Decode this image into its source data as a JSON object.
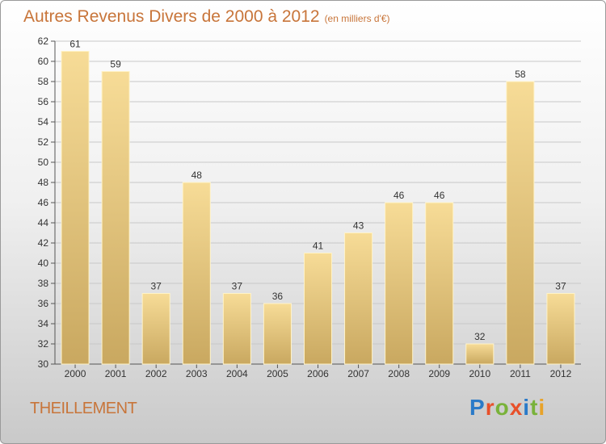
{
  "header": {
    "title": "Autres Revenus Divers de 2000 à 2012",
    "unit": "(en milliers d'€)"
  },
  "footer": {
    "location": "THEILLEMENT",
    "logo": "Proxiti"
  },
  "colors": {
    "bar_light": "#f7dc97",
    "bar_dark": "#c9a860",
    "title": "#c8753a"
  },
  "chart_data": {
    "type": "bar",
    "title": "Autres Revenus Divers de 2000 à 2012",
    "xlabel": "",
    "ylabel": "",
    "categories": [
      "2000",
      "2001",
      "2002",
      "2003",
      "2004",
      "2005",
      "2006",
      "2007",
      "2008",
      "2009",
      "2010",
      "2011",
      "2012"
    ],
    "values": [
      61,
      59,
      37,
      48,
      37,
      36,
      41,
      43,
      46,
      46,
      32,
      58,
      37
    ],
    "ylim": [
      30,
      62
    ],
    "yticks": [
      30,
      32,
      34,
      36,
      38,
      40,
      42,
      44,
      46,
      48,
      50,
      52,
      54,
      56,
      58,
      60,
      62
    ],
    "grid": true,
    "data_labels": true
  }
}
